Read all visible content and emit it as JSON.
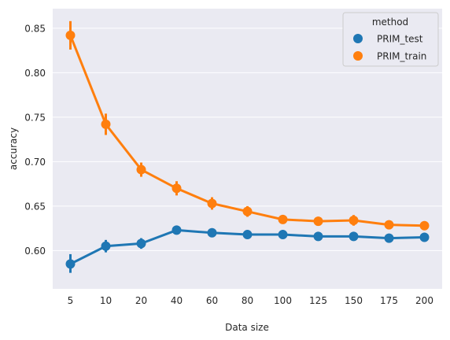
{
  "chart_data": {
    "type": "line",
    "title": "",
    "xlabel": "Data size",
    "ylabel": "accuracy",
    "categories": [
      "5",
      "10",
      "20",
      "40",
      "60",
      "80",
      "100",
      "125",
      "150",
      "175",
      "200"
    ],
    "y_ticks": [
      "0.60",
      "0.65",
      "0.70",
      "0.75",
      "0.80",
      "0.85"
    ],
    "ylim": [
      0.557,
      0.872
    ],
    "grid": true,
    "legend": {
      "title": "method",
      "placement": "top-right"
    },
    "series": [
      {
        "name": "PRIM_test",
        "color": "#1f77b4",
        "values": [
          0.585,
          0.605,
          0.608,
          0.623,
          0.62,
          0.618,
          0.618,
          0.616,
          0.616,
          0.614,
          0.615
        ],
        "ci_low": [
          0.575,
          0.598,
          0.602,
          0.618,
          0.616,
          0.615,
          0.615,
          0.613,
          0.613,
          0.611,
          0.612
        ],
        "ci_high": [
          0.596,
          0.612,
          0.614,
          0.628,
          0.624,
          0.621,
          0.621,
          0.619,
          0.619,
          0.617,
          0.618
        ]
      },
      {
        "name": "PRIM_train",
        "color": "#ff7f0e",
        "values": [
          0.842,
          0.742,
          0.691,
          0.67,
          0.653,
          0.644,
          0.635,
          0.633,
          0.634,
          0.629,
          0.628
        ],
        "ci_low": [
          0.826,
          0.73,
          0.683,
          0.662,
          0.646,
          0.638,
          0.63,
          0.628,
          0.628,
          0.625,
          0.624
        ],
        "ci_high": [
          0.858,
          0.754,
          0.699,
          0.678,
          0.66,
          0.65,
          0.64,
          0.638,
          0.64,
          0.633,
          0.632
        ]
      }
    ]
  }
}
